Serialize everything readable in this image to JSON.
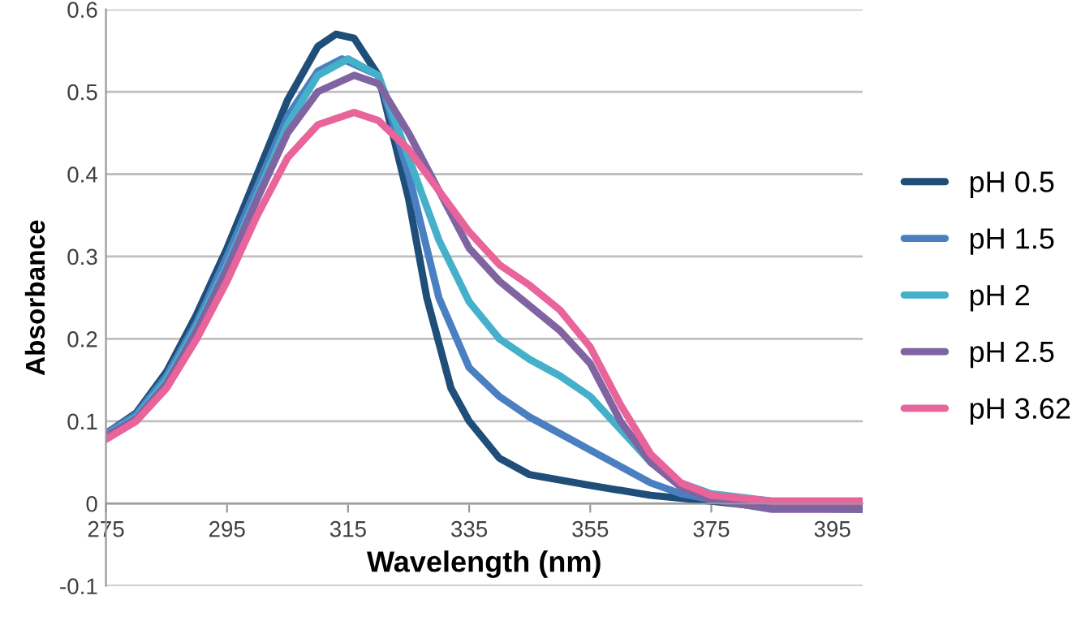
{
  "chart_data": {
    "type": "line",
    "xlabel": "Wavelength (nm)",
    "ylabel": "Absorbance",
    "xlim": [
      275,
      400
    ],
    "ylim": [
      -0.1,
      0.6
    ],
    "xticks": [
      275,
      295,
      315,
      335,
      355,
      375,
      395
    ],
    "yticks": [
      -0.1,
      0,
      0.1,
      0.2,
      0.3,
      0.4,
      0.5,
      0.6
    ],
    "grid": "y",
    "legend": "right",
    "marker": "none",
    "line_style": "solid",
    "series": [
      {
        "name": "pH 0.5",
        "color": "#1f4e79",
        "x": [
          275,
          280,
          285,
          290,
          295,
          300,
          305,
          310,
          313,
          316,
          320,
          325,
          328,
          332,
          335,
          340,
          345,
          355,
          365,
          375,
          385,
          400
        ],
        "values": [
          0.085,
          0.11,
          0.16,
          0.23,
          0.31,
          0.4,
          0.49,
          0.555,
          0.57,
          0.565,
          0.52,
          0.37,
          0.25,
          0.14,
          0.1,
          0.055,
          0.035,
          0.022,
          0.01,
          0.003,
          -0.005,
          -0.007
        ]
      },
      {
        "name": "pH 1.5",
        "color": "#4a7fc1",
        "x": [
          275,
          280,
          285,
          290,
          295,
          300,
          305,
          310,
          314,
          320,
          325,
          330,
          335,
          340,
          345,
          350,
          355,
          360,
          365,
          370,
          375,
          385,
          400
        ],
        "values": [
          0.085,
          0.108,
          0.155,
          0.22,
          0.3,
          0.385,
          0.47,
          0.525,
          0.54,
          0.52,
          0.4,
          0.25,
          0.165,
          0.13,
          0.105,
          0.085,
          0.065,
          0.045,
          0.025,
          0.012,
          0.005,
          0.0,
          0.0
        ]
      },
      {
        "name": "pH 2",
        "color": "#45b0c9",
        "x": [
          275,
          280,
          285,
          290,
          295,
          300,
          305,
          310,
          315,
          320,
          325,
          330,
          335,
          340,
          345,
          350,
          355,
          360,
          365,
          370,
          375,
          385,
          400
        ],
        "values": [
          0.083,
          0.105,
          0.15,
          0.215,
          0.29,
          0.375,
          0.46,
          0.52,
          0.54,
          0.52,
          0.42,
          0.32,
          0.245,
          0.2,
          0.175,
          0.155,
          0.13,
          0.09,
          0.05,
          0.025,
          0.012,
          0.003,
          0.003
        ]
      },
      {
        "name": "pH 2.5",
        "color": "#8064a2",
        "x": [
          275,
          280,
          285,
          290,
          295,
          300,
          305,
          310,
          316,
          320,
          325,
          330,
          335,
          340,
          345,
          350,
          355,
          360,
          365,
          370,
          375,
          385,
          400
        ],
        "values": [
          0.082,
          0.103,
          0.145,
          0.21,
          0.285,
          0.37,
          0.45,
          0.5,
          0.52,
          0.51,
          0.45,
          0.38,
          0.31,
          0.27,
          0.24,
          0.21,
          0.17,
          0.1,
          0.05,
          0.02,
          0.005,
          -0.007,
          -0.007
        ]
      },
      {
        "name": "pH 3.62",
        "color": "#e8649a",
        "x": [
          275,
          280,
          285,
          290,
          295,
          300,
          305,
          310,
          316,
          320,
          325,
          330,
          335,
          340,
          345,
          350,
          355,
          360,
          365,
          370,
          375,
          385,
          400
        ],
        "values": [
          0.078,
          0.1,
          0.14,
          0.2,
          0.27,
          0.35,
          0.42,
          0.46,
          0.475,
          0.465,
          0.43,
          0.38,
          0.33,
          0.29,
          0.265,
          0.235,
          0.19,
          0.12,
          0.06,
          0.025,
          0.01,
          0.003,
          0.003
        ]
      }
    ]
  }
}
